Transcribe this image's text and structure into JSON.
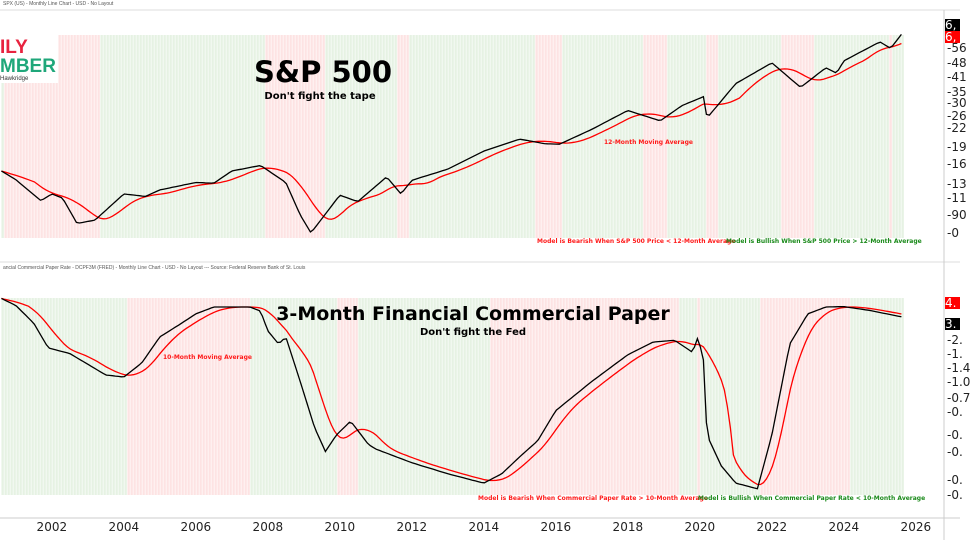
{
  "panel1": {
    "header": "SPX (US) - Monthly Line Chart - USD - No Layout",
    "title": "S&P 500",
    "subtitle": "Don't fight the tape",
    "ma_label": "12-Month Moving Average",
    "bearish_note": "Model is Bearish When S&P 500 Price < 12-Month Average",
    "bullish_note": "Model is Bullish When S&P 500 Price > 12-Month Average",
    "axis_labels": [
      "56",
      "48",
      "41",
      "35",
      "30",
      "26",
      "22",
      "19",
      "16",
      "13",
      "11",
      "90",
      "0"
    ],
    "price_box": "6,",
    "ma_box": "6,"
  },
  "panel2": {
    "header": "ancial Commercial Paper Rate - DCPF3M (FRED) - Monthly Line Chart - USD - No Layout --- Source: Federal Reserve Bank of St. Louis",
    "title": "3-Month Financial Commercial Paper",
    "subtitle": "Don't fight the Fed",
    "ma_label": "10-Month Moving Average",
    "bearish_note": "Model is Bearish When Commercial Paper Rate > 10-Month Average",
    "bullish_note": "Model is Bullish When Commercial Paper Rate < 10-Month Average",
    "axis_labels": [
      "2.",
      "1.",
      "1.4",
      "1.0",
      "0.7",
      "0.",
      "0.",
      "0.",
      "0.",
      "0."
    ],
    "rate_box": "3.",
    "ma_box": "4."
  },
  "logo": {
    "line1": "ILY",
    "line2": "MBER",
    "line3": "Hawkridge"
  },
  "x_axis": {
    "years": [
      "2002",
      "2004",
      "2006",
      "2008",
      "2010",
      "2012",
      "2014",
      "2016",
      "2018",
      "2020",
      "2022",
      "2024",
      "2026"
    ]
  },
  "colors": {
    "price": "#000000",
    "ma": "#ff0000",
    "bull_band": "#e6f2e3",
    "bear_band": "#fde3e3",
    "bearish_text": "#ff1a1a",
    "bullish_text": "#1a8a1a",
    "logo_red": "#e8233f",
    "logo_green": "#1fa77a"
  },
  "chart_data": [
    {
      "type": "line",
      "title": "S&P 500",
      "yscale": "log",
      "x_range": [
        2000.6,
        2025.6
      ],
      "series": [
        {
          "name": "S&P 500",
          "points": [
            [
              2000.6,
              1450
            ],
            [
              2001.0,
              1320
            ],
            [
              2001.7,
              1050
            ],
            [
              2002.0,
              1130
            ],
            [
              2002.3,
              1080
            ],
            [
              2002.7,
              820
            ],
            [
              2003.2,
              850
            ],
            [
              2004.0,
              1130
            ],
            [
              2004.6,
              1100
            ],
            [
              2005.0,
              1180
            ],
            [
              2006.0,
              1280
            ],
            [
              2006.5,
              1270
            ],
            [
              2007.0,
              1450
            ],
            [
              2007.8,
              1540
            ],
            [
              2008.5,
              1280
            ],
            [
              2008.9,
              900
            ],
            [
              2009.2,
              740
            ],
            [
              2010.0,
              1115
            ],
            [
              2010.5,
              1040
            ],
            [
              2011.3,
              1360
            ],
            [
              2011.7,
              1130
            ],
            [
              2012.0,
              1310
            ],
            [
              2013.0,
              1480
            ],
            [
              2014.0,
              1800
            ],
            [
              2015.0,
              2050
            ],
            [
              2015.7,
              1950
            ],
            [
              2016.1,
              1940
            ],
            [
              2017.0,
              2280
            ],
            [
              2018.0,
              2800
            ],
            [
              2018.9,
              2500
            ],
            [
              2019.5,
              2950
            ],
            [
              2020.1,
              3250
            ],
            [
              2020.2,
              2580
            ],
            [
              2021.0,
              3750
            ],
            [
              2022.0,
              4700
            ],
            [
              2022.8,
              3600
            ],
            [
              2023.5,
              4450
            ],
            [
              2023.8,
              4200
            ],
            [
              2024.0,
              4800
            ],
            [
              2025.0,
              5900
            ],
            [
              2025.3,
              5500
            ],
            [
              2025.6,
              6400
            ]
          ]
        }
      ],
      "moving_average_months": 12
    },
    {
      "type": "line",
      "title": "3-Month Financial Commercial Paper",
      "yscale": "log",
      "x_range": [
        2000.6,
        2025.6
      ],
      "series": [
        {
          "name": "3-Month Financial Commercial Paper",
          "points": [
            [
              2000.6,
              6.5
            ],
            [
              2001.0,
              5.5
            ],
            [
              2001.5,
              3.6
            ],
            [
              2001.9,
              2.0
            ],
            [
              2002.5,
              1.75
            ],
            [
              2003.5,
              1.05
            ],
            [
              2004.0,
              1.0
            ],
            [
              2004.5,
              1.4
            ],
            [
              2005.0,
              2.6
            ],
            [
              2005.5,
              3.4
            ],
            [
              2006.0,
              4.5
            ],
            [
              2006.5,
              5.3
            ],
            [
              2007.5,
              5.3
            ],
            [
              2007.8,
              4.8
            ],
            [
              2008.0,
              3.0
            ],
            [
              2008.3,
              2.2
            ],
            [
              2008.5,
              2.6
            ],
            [
              2008.9,
              0.9
            ],
            [
              2009.3,
              0.3
            ],
            [
              2009.6,
              0.17
            ],
            [
              2009.9,
              0.25
            ],
            [
              2010.3,
              0.35
            ],
            [
              2010.8,
              0.2
            ],
            [
              2011.0,
              0.18
            ],
            [
              2012.0,
              0.13
            ],
            [
              2013.0,
              0.1
            ],
            [
              2014.0,
              0.08
            ],
            [
              2014.5,
              0.1
            ],
            [
              2015.0,
              0.15
            ],
            [
              2015.5,
              0.22
            ],
            [
              2016.0,
              0.45
            ],
            [
              2017.0,
              0.9
            ],
            [
              2018.0,
              1.7
            ],
            [
              2018.7,
              2.3
            ],
            [
              2019.3,
              2.4
            ],
            [
              2019.8,
              1.8
            ],
            [
              2019.95,
              2.6
            ],
            [
              2020.1,
              1.5
            ],
            [
              2020.2,
              0.25
            ],
            [
              2020.6,
              0.12
            ],
            [
              2021.0,
              0.08
            ],
            [
              2021.6,
              0.07
            ],
            [
              2022.0,
              0.25
            ],
            [
              2022.5,
              2.2
            ],
            [
              2023.0,
              4.5
            ],
            [
              2023.5,
              5.3
            ],
            [
              2024.0,
              5.35
            ],
            [
              2024.7,
              4.9
            ],
            [
              2025.6,
              4.2
            ]
          ]
        }
      ],
      "moving_average_months": 10
    }
  ]
}
